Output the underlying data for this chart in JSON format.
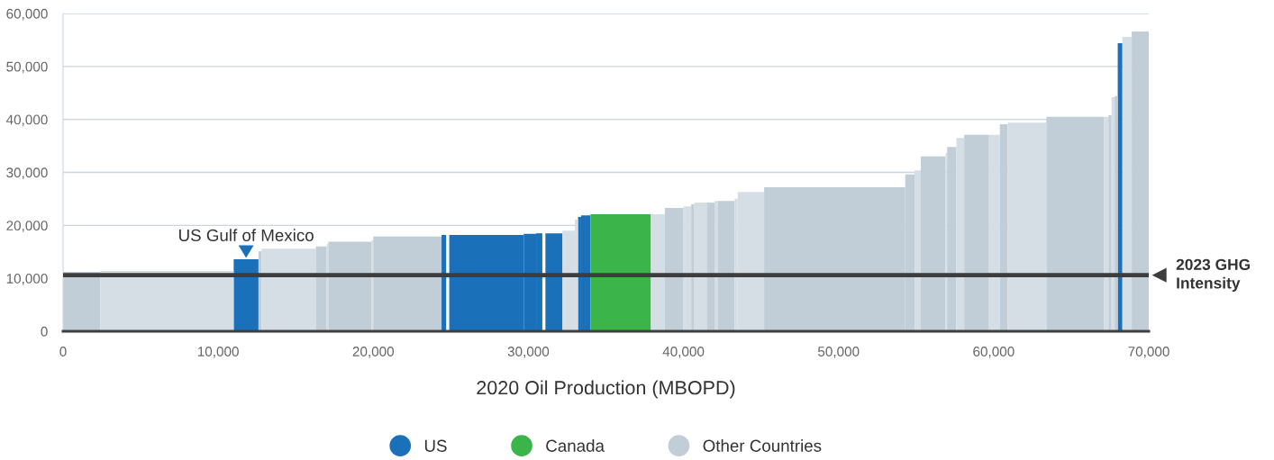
{
  "chart_data": {
    "type": "histogram",
    "xlabel": "2020 Oil Production (MBOPD)",
    "bins": [
      0,
      2400,
      11000,
      12600,
      12800,
      16300,
      17000,
      17100,
      19900,
      20000,
      24400,
      24700,
      24900,
      29700,
      30500,
      30900,
      31100,
      32200,
      33000,
      33200,
      33400,
      34000,
      37900,
      38800,
      40000,
      40500,
      40700,
      41500,
      42000,
      42200,
      43300,
      43500,
      45200,
      54300,
      54900,
      55300,
      56900,
      57000,
      57600,
      58100,
      59700,
      60400,
      60900,
      63400,
      67100,
      67400,
      67600,
      67800,
      68000,
      68300,
      68900,
      70000
    ],
    "series": [
      {
        "name": "US",
        "color": "#1b71b9",
        "values": [
          null,
          null,
          13600,
          null,
          null,
          null,
          null,
          null,
          null,
          null,
          18200,
          null,
          18200,
          18400,
          18500,
          null,
          18500,
          null,
          null,
          21600,
          21900,
          null,
          null,
          null,
          null,
          null,
          null,
          null,
          null,
          null,
          null,
          null,
          null,
          null,
          null,
          null,
          null,
          null,
          null,
          null,
          null,
          null,
          null,
          null,
          null,
          null,
          null,
          null,
          54400,
          null,
          null
        ]
      },
      {
        "name": "Canada",
        "color": "#3bb54a",
        "values": [
          null,
          null,
          null,
          null,
          null,
          null,
          null,
          null,
          null,
          null,
          null,
          null,
          null,
          null,
          null,
          null,
          null,
          null,
          null,
          null,
          null,
          22100,
          null,
          null,
          null,
          null,
          null,
          null,
          null,
          null,
          null,
          null,
          null,
          null,
          null,
          null,
          null,
          null,
          null,
          null,
          null,
          null,
          null,
          null,
          null,
          null,
          null,
          null,
          null,
          null,
          null
        ]
      },
      {
        "name": "Other Countries",
        "color": "#c1ced7",
        "values": [
          11200,
          11400,
          null,
          15100,
          15600,
          16000,
          16500,
          16900,
          17200,
          17900,
          null,
          null,
          null,
          null,
          null,
          null,
          null,
          19000,
          21100,
          null,
          null,
          null,
          22100,
          23300,
          23600,
          24000,
          24300,
          24300,
          24600,
          24600,
          25000,
          26300,
          27200,
          29600,
          30400,
          33000,
          33700,
          34800,
          36500,
          37100,
          37100,
          39100,
          39400,
          40500,
          40500,
          40800,
          44200,
          44400,
          null,
          55600,
          56600
        ],
        "colors": [
          "#c1ced7",
          "#d6dee5",
          null,
          "#c1ced7",
          "#d6dee5",
          "#c1ced7",
          "#d6dee5",
          "#c1ced7",
          "#d6dee5",
          "#c1ced7",
          null,
          null,
          null,
          null,
          null,
          null,
          null,
          "#d6dee5",
          "#d6dee5",
          null,
          null,
          null,
          "#d6dee5",
          "#c1ced7",
          "#d6dee5",
          "#c1ced7",
          "#d6dee5",
          "#c1ced7",
          "#d6dee5",
          "#c1ced7",
          "#d6dee5",
          "#d6dee5",
          "#c1ced7",
          "#c1ced7",
          "#d6dee5",
          "#c1ced7",
          "#d6dee5",
          "#c1ced7",
          "#d6dee5",
          "#c1ced7",
          "#d6dee5",
          "#c1ced7",
          "#d6dee5",
          "#c1ced7",
          "#d6dee5",
          "#c1ced7",
          "#d6dee5",
          "#c1ced7",
          null,
          "#d6dee5",
          "#c1ced7"
        ]
      }
    ],
    "xlim": [
      0,
      70000
    ],
    "xticks": [
      0,
      {
        "value": 10000,
        "label": "10,000"
      },
      {
        "value": 20000,
        "label": "20,000"
      },
      {
        "value": 30000,
        "label": "30,000"
      },
      {
        "value": 40000,
        "label": "40,000"
      },
      {
        "value": 50000,
        "label": "50,000"
      },
      {
        "value": 60000,
        "label": "60,000"
      },
      {
        "value": 70000,
        "label": "70,000"
      }
    ],
    "ylim": [
      0,
      60000
    ],
    "yticks": [
      0,
      {
        "value": 10000,
        "label": "10,000"
      },
      {
        "value": 20000,
        "label": "20,000"
      },
      {
        "value": 30000,
        "label": "30,000"
      },
      {
        "value": 40000,
        "label": "40,000"
      },
      {
        "value": 50000,
        "label": "50,000"
      },
      {
        "value": 60000,
        "label": "60,000"
      }
    ],
    "grid": "y",
    "legend": "bottom",
    "ref_lines": [
      {
        "axis": "y",
        "value": 10600,
        "label": "2023 GHG\nIntensity",
        "color": "#3d3d3d"
      }
    ],
    "annotations": [
      {
        "text": "US Gulf of Mexico",
        "x": 11800,
        "y": 13600
      }
    ]
  }
}
